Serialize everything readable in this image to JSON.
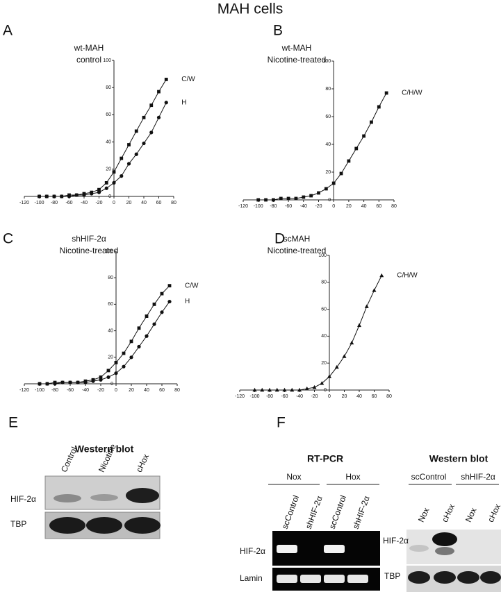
{
  "title": "MAH cells",
  "chart_data": [
    {
      "type": "line",
      "panel_label": "A",
      "title": "wt-MAH",
      "subtitle": "control",
      "x": [
        -100,
        -90,
        -80,
        -70,
        -60,
        -50,
        -40,
        -30,
        -20,
        -10,
        0,
        10,
        20,
        30,
        40,
        50,
        60,
        70
      ],
      "series": [
        {
          "name": "C/W",
          "color": "#111",
          "marker": "square",
          "values": [
            0,
            0,
            0,
            0,
            1,
            1,
            2,
            3,
            5,
            10,
            18,
            28,
            38,
            48,
            58,
            67,
            77,
            86
          ]
        },
        {
          "name": "H",
          "color": "#111",
          "marker": "circle",
          "values": [
            0,
            0,
            0,
            0,
            0,
            1,
            1,
            2,
            3,
            6,
            10,
            15,
            24,
            31,
            39,
            47,
            58,
            69
          ]
        }
      ],
      "xlim": [
        -120,
        80
      ],
      "xticks": [
        -120,
        -100,
        -80,
        -60,
        -40,
        -20,
        0,
        20,
        40,
        60,
        80
      ],
      "ylim": [
        0,
        100
      ],
      "yticks": [
        0,
        20,
        40,
        60,
        80,
        100
      ]
    },
    {
      "type": "line",
      "panel_label": "B",
      "title": "wt-MAH",
      "subtitle": "Nicotine-treated",
      "x": [
        -100,
        -90,
        -80,
        -70,
        -60,
        -50,
        -40,
        -30,
        -20,
        -10,
        0,
        10,
        20,
        30,
        40,
        50,
        60,
        70
      ],
      "series": [
        {
          "name": "C/H/W",
          "color": "#111",
          "marker": "square",
          "values": [
            0,
            0,
            0,
            1,
            1,
            1,
            2,
            3,
            5,
            8,
            12,
            19,
            28,
            37,
            46,
            56,
            67,
            77
          ]
        }
      ],
      "xlim": [
        -120,
        80
      ],
      "xticks": [
        -120,
        -100,
        -80,
        -60,
        -40,
        -20,
        0,
        20,
        40,
        60,
        80
      ],
      "ylim": [
        0,
        100
      ],
      "yticks": [
        0,
        20,
        40,
        60,
        80,
        100
      ]
    },
    {
      "type": "line",
      "panel_label": "C",
      "title": "shHIF-2α",
      "subtitle": "Nicotine-treated",
      "x": [
        -100,
        -90,
        -80,
        -70,
        -60,
        -50,
        -40,
        -30,
        -20,
        -10,
        0,
        10,
        20,
        30,
        40,
        50,
        60,
        70
      ],
      "series": [
        {
          "name": "C/W",
          "color": "#111",
          "marker": "square",
          "values": [
            0,
            0,
            1,
            1,
            1,
            1,
            2,
            3,
            5,
            10,
            16,
            23,
            32,
            42,
            51,
            60,
            68,
            74
          ]
        },
        {
          "name": "H",
          "color": "#111",
          "marker": "circle",
          "values": [
            0,
            0,
            0,
            1,
            1,
            1,
            1,
            2,
            3,
            5,
            8,
            13,
            20,
            28,
            36,
            45,
            54,
            62
          ]
        }
      ],
      "xlim": [
        -120,
        80
      ],
      "xticks": [
        -120,
        -100,
        -80,
        -60,
        -40,
        -20,
        0,
        20,
        40,
        60,
        80
      ],
      "ylim": [
        0,
        100
      ],
      "yticks": [
        0,
        20,
        40,
        60,
        80,
        100
      ]
    },
    {
      "type": "line",
      "panel_label": "D",
      "title": "scMAH",
      "subtitle": "Nicotine-treated",
      "x": [
        -100,
        -90,
        -80,
        -70,
        -60,
        -50,
        -40,
        -30,
        -20,
        -10,
        0,
        10,
        20,
        30,
        40,
        50,
        60,
        70
      ],
      "series": [
        {
          "name": "C/H/W",
          "color": "#111",
          "marker": "triangle",
          "values": [
            0,
            0,
            0,
            0,
            0,
            0,
            0,
            1,
            2,
            5,
            10,
            17,
            25,
            35,
            48,
            62,
            74,
            85
          ]
        }
      ],
      "xlim": [
        -120,
        80
      ],
      "xticks": [
        -120,
        -100,
        -80,
        -60,
        -40,
        -20,
        0,
        20,
        40,
        60,
        80
      ],
      "ylim": [
        0,
        100
      ],
      "yticks": [
        0,
        20,
        40,
        60,
        80,
        100
      ]
    }
  ],
  "panel_e": {
    "label": "E",
    "title": "Western blot",
    "lanes": [
      "Control",
      "Nicotine",
      "cHox"
    ],
    "rows": [
      "HIF-2α",
      "TBP"
    ]
  },
  "panel_f": {
    "label": "F",
    "rt_pcr": {
      "title": "RT-PCR",
      "groups": [
        "Nox",
        "Hox"
      ],
      "lanes": [
        "scControl",
        "shHIF-2α",
        "scControl",
        "shHIF-2α"
      ],
      "rows": [
        "HIF-2α",
        "Lamin"
      ]
    },
    "western": {
      "title": "Western blot",
      "groups": [
        "scControl",
        "shHIF-2α"
      ],
      "lanes": [
        "Nox",
        "cHox",
        "Nox",
        "cHox"
      ],
      "rows": [
        "HIF-2α",
        "TBP"
      ]
    }
  }
}
